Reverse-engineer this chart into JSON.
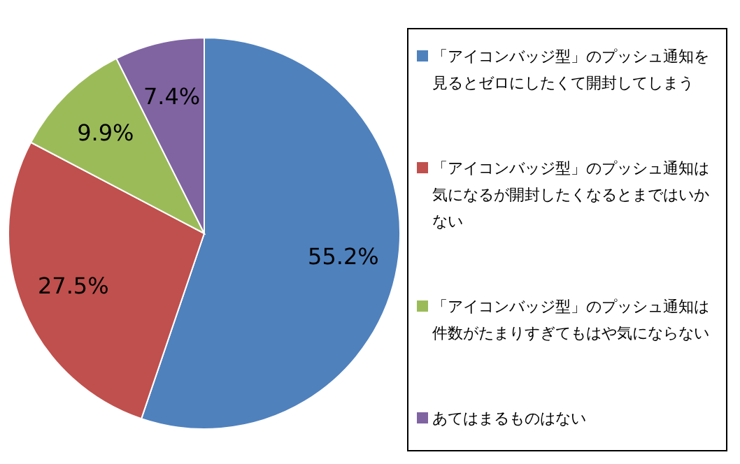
{
  "chart_data": {
    "type": "pie",
    "categories": [
      "「アイコンバッジ型」のプッシュ通知を見るとゼロにしたくて開封してしまう",
      "「アイコンバッジ型」のプッシュ通知は気になるが開封したくなるとまではいかない",
      "「アイコンバッジ型」のプッシュ通知は件数がたまりすぎてもはや気にならない",
      "あてはまるものはない"
    ],
    "values": [
      55.2,
      27.5,
      9.9,
      7.4
    ],
    "value_labels": [
      "55.2%",
      "27.5%",
      "9.9%",
      "7.4%"
    ],
    "colors": [
      "#4f81bd",
      "#c0504d",
      "#9bbb59",
      "#8064a2"
    ],
    "legend": "right"
  }
}
